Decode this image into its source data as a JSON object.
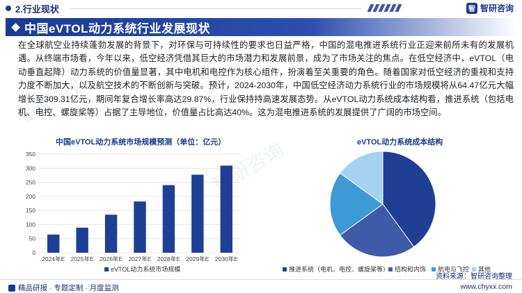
{
  "header": {
    "section": "2.行业现状",
    "brand_logo": "智",
    "brand": "智研咨询"
  },
  "title": "中国eVTOL动力系统行业发展现状",
  "paragraph": "在全球航空业持续蓬勃发展的背景下，对环保与可持续性的要求也日益严格，中国的混电推进系统行业正迎来前所未有的发展机遇。从终端市场看，今年以来，低空经济凭借其巨大的市场潜力和发展前景，成为了市场关注的焦点。在低空经济中，eVTOL（电动垂直起降）动力系统的价值量显著，其中电机和电控作为核心组件，扮演着至关重要的角色。随着国家对低空经济的重视和支持力度不断加大，以及航空技术的不断创新与突破。预计，2024-2030年，中国低空经济动力系统行业的市场规模将从64.47亿元大幅增长至309.31亿元，期间年复合增长率高达29.87%，行业保持持高速发展态势。从eVTOL动力系统成本结构看，推进系统（包括电机、电控、螺旋桨等）占据了主导地位，价值量占比高达40%。这为混电推进系统的发展提供了广阔的市场空间。",
  "watermark": "智研咨询",
  "chart_data": [
    {
      "type": "bar",
      "title": "中国eVTOL动力系统市场规模预测（单位：亿元）",
      "categories": [
        "2024年E",
        "2025年E",
        "2026年E",
        "2027年E",
        "2028年E",
        "2029年E",
        "2030年E"
      ],
      "series": [
        {
          "name": "eVTOL动力系统市场规模",
          "values": [
            64.47,
            89,
            135,
            182,
            240,
            277,
            309.31
          ],
          "color": "#1f3f95"
        }
      ],
      "yticks": [
        0,
        50,
        100,
        150,
        200,
        250,
        300,
        350
      ],
      "ylim": [
        0,
        350
      ],
      "grid": true,
      "legend": "bottom"
    },
    {
      "type": "pie",
      "title": "eVTOL动力系统成本结构",
      "slices": [
        {
          "label": "推进系统（电机、电控、螺旋桨等）",
          "value": 40,
          "color": "#1f3f95"
        },
        {
          "label": "结构和内饰",
          "value": 25,
          "color": "#3e5aa8"
        },
        {
          "label": "航电与飞控",
          "value": 20,
          "color": "#3d9ad6"
        },
        {
          "label": "其他",
          "value": 15,
          "color": "#a6d1f0"
        }
      ],
      "legend": "bottom"
    }
  ],
  "footer": {
    "left": "精品研报 · 专题定制 · 月度监测",
    "right": "www.chyxx.com",
    "source": "资料来源：智研咨询整理"
  }
}
